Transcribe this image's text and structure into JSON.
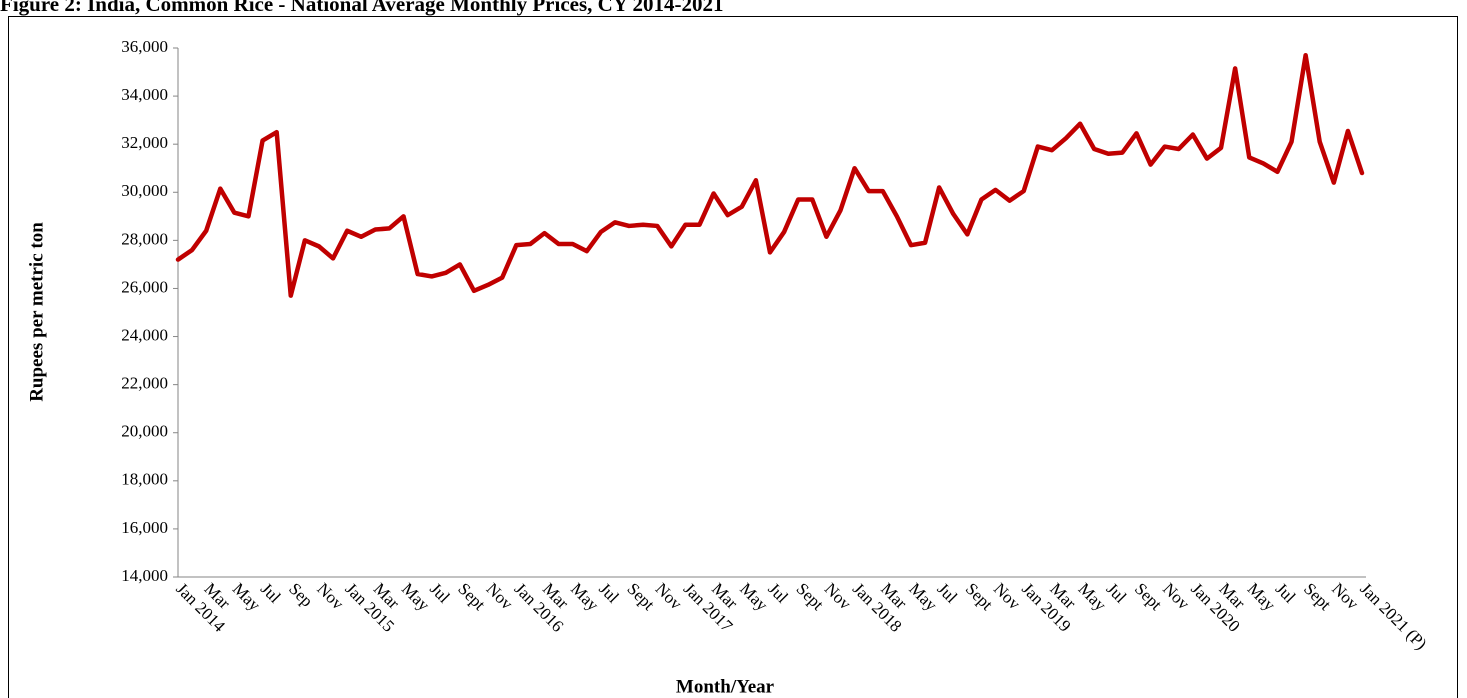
{
  "chart_data": {
    "type": "line",
    "title": "Figure 2: India, Common Rice - National Average Monthly Prices, CY 2014-2021",
    "x_label": "Month/Year",
    "y_label": "Rupees per metric ton",
    "categories": [
      "Jan 2014",
      null,
      "Mar",
      null,
      "May",
      null,
      "Jul",
      null,
      "Sep",
      null,
      "Nov",
      null,
      "Jan 2015",
      null,
      "Mar",
      null,
      "May",
      null,
      "Jul",
      null,
      "Sept",
      null,
      "Nov",
      null,
      "Jan 2016",
      null,
      "Mar",
      null,
      "May",
      null,
      "Jul",
      null,
      "Sept",
      null,
      "Nov",
      null,
      "Jan 2017",
      null,
      "Mar",
      null,
      "May",
      null,
      "Jul",
      null,
      "Sept",
      null,
      "Nov",
      null,
      "Jan 2018",
      null,
      "Mar",
      null,
      "May",
      null,
      "Jul",
      null,
      "Sept",
      null,
      "Nov",
      null,
      "Jan 2019",
      null,
      "Mar",
      null,
      "May",
      null,
      "Jul",
      null,
      "Sept",
      null,
      "Nov",
      null,
      "Jan 2020",
      null,
      "Mar",
      null,
      "May",
      null,
      "Jul",
      null,
      "Sept",
      null,
      "Nov",
      null,
      "Jan 2021 (P)"
    ],
    "series": [
      {
        "name": "Common Rice",
        "color": "#c00000",
        "values": [
          27200,
          27600,
          28400,
          30150,
          29150,
          29000,
          32150,
          32500,
          25700,
          28000,
          27750,
          27250,
          28400,
          28150,
          28450,
          28500,
          29000,
          26600,
          26500,
          26650,
          27000,
          25900,
          26150,
          26450,
          27800,
          27850,
          28300,
          27850,
          27850,
          27550,
          28350,
          28750,
          28600,
          28650,
          28600,
          27750,
          28650,
          28650,
          29950,
          29050,
          29400,
          30500,
          27500,
          28350,
          29700,
          29700,
          28150,
          29250,
          31000,
          30050,
          30050,
          29000,
          27800,
          27900,
          30200,
          29100,
          28250,
          29700,
          30100,
          29650,
          30050,
          31900,
          31750,
          32250,
          32850,
          31800,
          31600,
          31650,
          32450,
          31150,
          31900,
          31800,
          32400,
          31400,
          31850,
          35150,
          31450,
          31200,
          30850,
          32100,
          35700,
          32100,
          30400,
          32550,
          30800
        ]
      }
    ],
    "ylim": [
      14000,
      36000
    ],
    "yticks": [
      {
        "value": 14000,
        "label": "14,000"
      },
      {
        "value": 16000,
        "label": "16,000"
      },
      {
        "value": 18000,
        "label": "18,000"
      },
      {
        "value": 20000,
        "label": "20,000"
      },
      {
        "value": 22000,
        "label": "22,000"
      },
      {
        "value": 24000,
        "label": "24,000"
      },
      {
        "value": 26000,
        "label": "26,000"
      },
      {
        "value": 28000,
        "label": "28,000"
      },
      {
        "value": 30000,
        "label": "30,000"
      },
      {
        "value": 32000,
        "label": "32,000"
      },
      {
        "value": 34000,
        "label": "34,000"
      },
      {
        "value": 36000,
        "label": "36,000"
      }
    ],
    "grid": false
  }
}
